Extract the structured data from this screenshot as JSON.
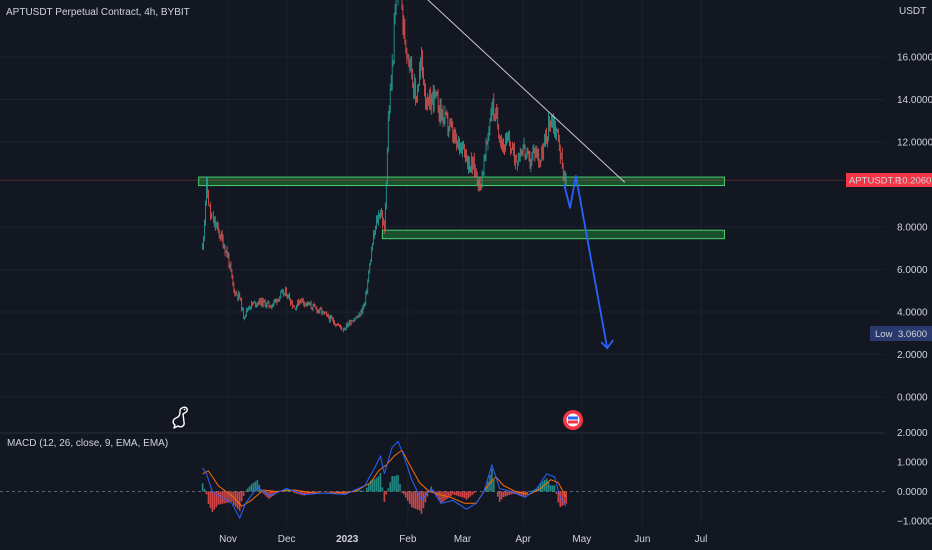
{
  "chart_data": {
    "type": "candlestick",
    "title": "APTUSDT Perpetual Contract, 4h, BYBIT",
    "currency": "USDT",
    "symbol_tag": "APTUSDT.P",
    "last_price": 10.206,
    "last_price_label": "10.2060",
    "low_label": "Low",
    "low_value": 3.06,
    "low_value_label": "3.0600",
    "ylim": [
      -0.2,
      20.0
    ],
    "y_ticks": [
      {
        "v": 0,
        "label": "0.0000"
      },
      {
        "v": 2,
        "label": "2.0000"
      },
      {
        "v": 4,
        "label": "4.0000"
      },
      {
        "v": 6,
        "label": "6.0000"
      },
      {
        "v": 8,
        "label": "8.0000"
      },
      {
        "v": 12,
        "label": "12.0000"
      },
      {
        "v": 14,
        "label": "14.0000"
      },
      {
        "v": 16,
        "label": "16.0000"
      }
    ],
    "x_ticks": [
      {
        "date": "2022-11-01",
        "label": "Nov"
      },
      {
        "date": "2022-12-01",
        "label": "Dec"
      },
      {
        "date": "2023-01-01",
        "label": "2023"
      },
      {
        "date": "2023-02-01",
        "label": "Feb"
      },
      {
        "date": "2023-03-01",
        "label": "Mar"
      },
      {
        "date": "2023-04-01",
        "label": "Apr"
      },
      {
        "date": "2023-05-01",
        "label": "May"
      },
      {
        "date": "2023-06-01",
        "label": "Jun"
      },
      {
        "date": "2023-07-01",
        "label": "Jul"
      }
    ],
    "price_path": [
      [
        "2022-10-19",
        7.0
      ],
      [
        "2022-10-21",
        9.9
      ],
      [
        "2022-10-23",
        8.5
      ],
      [
        "2022-10-26",
        8.0
      ],
      [
        "2022-10-29",
        7.4
      ],
      [
        "2022-11-01",
        6.6
      ],
      [
        "2022-11-04",
        5.0
      ],
      [
        "2022-11-07",
        4.7
      ],
      [
        "2022-11-09",
        3.8
      ],
      [
        "2022-11-12",
        4.3
      ],
      [
        "2022-11-17",
        4.5
      ],
      [
        "2022-11-23",
        4.3
      ],
      [
        "2022-11-28",
        4.8
      ],
      [
        "2022-12-01",
        4.9
      ],
      [
        "2022-12-05",
        4.2
      ],
      [
        "2022-12-08",
        4.6
      ],
      [
        "2022-12-11",
        4.4
      ],
      [
        "2022-12-15",
        4.2
      ],
      [
        "2022-12-19",
        4.0
      ],
      [
        "2022-12-23",
        3.7
      ],
      [
        "2022-12-27",
        3.4
      ],
      [
        "2022-12-30",
        3.2
      ],
      [
        "2023-01-03",
        3.6
      ],
      [
        "2023-01-07",
        3.8
      ],
      [
        "2023-01-10",
        4.4
      ],
      [
        "2023-01-12",
        5.8
      ],
      [
        "2023-01-14",
        7.2
      ],
      [
        "2023-01-16",
        8.2
      ],
      [
        "2023-01-18",
        8.8
      ],
      [
        "2023-01-20",
        7.8
      ],
      [
        "2023-01-22",
        13.0
      ],
      [
        "2023-01-24",
        15.5
      ],
      [
        "2023-01-26",
        18.8
      ],
      [
        "2023-01-28",
        19.8
      ],
      [
        "2023-01-30",
        17.0
      ],
      [
        "2023-02-02",
        16.0
      ],
      [
        "2023-02-05",
        14.0
      ],
      [
        "2023-02-08",
        15.8
      ],
      [
        "2023-02-11",
        13.5
      ],
      [
        "2023-02-14",
        14.2
      ],
      [
        "2023-02-17",
        13.6
      ],
      [
        "2023-02-20",
        13.0
      ],
      [
        "2023-02-23",
        12.6
      ],
      [
        "2023-02-26",
        11.8
      ],
      [
        "2023-03-01",
        12.0
      ],
      [
        "2023-03-04",
        11.0
      ],
      [
        "2023-03-07",
        10.8
      ],
      [
        "2023-03-10",
        9.9
      ],
      [
        "2023-03-13",
        11.6
      ],
      [
        "2023-03-16",
        13.8
      ],
      [
        "2023-03-19",
        12.8
      ],
      [
        "2023-03-22",
        11.8
      ],
      [
        "2023-03-25",
        12.0
      ],
      [
        "2023-03-28",
        11.2
      ],
      [
        "2023-04-01",
        11.8
      ],
      [
        "2023-04-04",
        11.0
      ],
      [
        "2023-04-07",
        11.6
      ],
      [
        "2023-04-10",
        11.2
      ],
      [
        "2023-04-13",
        12.2
      ],
      [
        "2023-04-15",
        13.2
      ],
      [
        "2023-04-17",
        12.8
      ],
      [
        "2023-04-19",
        12.2
      ],
      [
        "2023-04-21",
        10.8
      ],
      [
        "2023-04-23",
        10.2
      ]
    ],
    "annotations": {
      "trendline": {
        "from": [
          "2023-01-21",
          20.5
        ],
        "to": [
          "2023-05-23",
          10.1
        ]
      },
      "support_zones": [
        {
          "from": "2022-10-17",
          "to": "2023-07-13",
          "low": 9.95,
          "high": 10.35
        },
        {
          "from": "2023-01-19",
          "to": "2023-07-13",
          "low": 7.45,
          "high": 7.85
        }
      ],
      "projection_arrow": [
        [
          "2023-04-22",
          10.0
        ],
        [
          "2023-04-25",
          8.9
        ],
        [
          "2023-04-28",
          10.4
        ],
        [
          "2023-05-14",
          2.3
        ]
      ]
    },
    "macd": {
      "label": "MACD (12, 26, close, 9, EMA, EMA)",
      "ylim": [
        -1.3,
        2.2
      ],
      "y_ticks": [
        {
          "v": 2,
          "label": "2.0000"
        },
        {
          "v": 1,
          "label": "1.0000"
        },
        {
          "v": 0,
          "label": "0.0000"
        },
        {
          "v": -1,
          "label": "−1.0000"
        }
      ],
      "macd_line": [
        [
          "2022-10-19",
          0.8
        ],
        [
          "2022-10-21",
          0.6
        ],
        [
          "2022-10-24",
          0.0
        ],
        [
          "2022-11-03",
          -0.4
        ],
        [
          "2022-11-07",
          -0.9
        ],
        [
          "2022-11-10",
          -0.4
        ],
        [
          "2022-11-16",
          0.15
        ],
        [
          "2022-11-22",
          -0.15
        ],
        [
          "2022-12-01",
          0.1
        ],
        [
          "2022-12-10",
          -0.1
        ],
        [
          "2022-12-20",
          -0.05
        ],
        [
          "2022-12-31",
          -0.1
        ],
        [
          "2023-01-10",
          0.2
        ],
        [
          "2023-01-15",
          0.8
        ],
        [
          "2023-01-18",
          1.2
        ],
        [
          "2023-01-20",
          0.6
        ],
        [
          "2023-01-24",
          1.5
        ],
        [
          "2023-01-27",
          1.7
        ],
        [
          "2023-01-30",
          1.2
        ],
        [
          "2023-02-03",
          0.4
        ],
        [
          "2023-02-08",
          -0.3
        ],
        [
          "2023-02-13",
          0.1
        ],
        [
          "2023-02-18",
          -0.4
        ],
        [
          "2023-02-24",
          -0.3
        ],
        [
          "2023-03-03",
          -0.6
        ],
        [
          "2023-03-08",
          -0.4
        ],
        [
          "2023-03-12",
          0.0
        ],
        [
          "2023-03-16",
          0.9
        ],
        [
          "2023-03-20",
          0.1
        ],
        [
          "2023-03-26",
          0.0
        ],
        [
          "2023-04-02",
          -0.2
        ],
        [
          "2023-04-08",
          0.1
        ],
        [
          "2023-04-13",
          0.6
        ],
        [
          "2023-04-17",
          0.5
        ],
        [
          "2023-04-20",
          -0.2
        ],
        [
          "2023-04-23",
          -0.5
        ]
      ],
      "signal_line": [
        [
          "2022-10-19",
          0.6
        ],
        [
          "2022-10-22",
          0.7
        ],
        [
          "2022-10-27",
          0.2
        ],
        [
          "2022-11-04",
          -0.2
        ],
        [
          "2022-11-08",
          -0.5
        ],
        [
          "2022-11-13",
          -0.3
        ],
        [
          "2022-11-19",
          0.05
        ],
        [
          "2022-11-26",
          0.0
        ],
        [
          "2022-12-05",
          0.05
        ],
        [
          "2022-12-15",
          -0.05
        ],
        [
          "2022-12-25",
          -0.05
        ],
        [
          "2023-01-05",
          0.0
        ],
        [
          "2023-01-13",
          0.3
        ],
        [
          "2023-01-17",
          0.7
        ],
        [
          "2023-01-21",
          0.9
        ],
        [
          "2023-01-25",
          1.2
        ],
        [
          "2023-01-29",
          1.4
        ],
        [
          "2023-02-02",
          0.9
        ],
        [
          "2023-02-07",
          0.3
        ],
        [
          "2023-02-12",
          0.0
        ],
        [
          "2023-02-17",
          -0.1
        ],
        [
          "2023-02-23",
          -0.2
        ],
        [
          "2023-03-02",
          -0.4
        ],
        [
          "2023-03-08",
          -0.4
        ],
        [
          "2023-03-14",
          0.2
        ],
        [
          "2023-03-18",
          0.5
        ],
        [
          "2023-03-22",
          0.2
        ],
        [
          "2023-03-28",
          0.0
        ],
        [
          "2023-04-04",
          -0.1
        ],
        [
          "2023-04-10",
          0.1
        ],
        [
          "2023-04-15",
          0.4
        ],
        [
          "2023-04-19",
          0.3
        ],
        [
          "2023-04-23",
          -0.2
        ]
      ]
    },
    "colors": {
      "background": "#131722",
      "text": "#d1d4dc",
      "grid": "#1e222d",
      "up": "#26a69a",
      "down": "#ef5350",
      "trendline": "#ccc7d0",
      "zone_fill": "#1f5a2f",
      "zone_border": "#4ccf72",
      "arrow": "#2962ff",
      "last_price_badge": "#f23645",
      "low_badge": "#2a3a6e",
      "macd_line": "#2962ff",
      "signal_line": "#ff6d00"
    },
    "icons": [
      "dinosaur-logo-icon",
      "flag-event-icon"
    ]
  }
}
